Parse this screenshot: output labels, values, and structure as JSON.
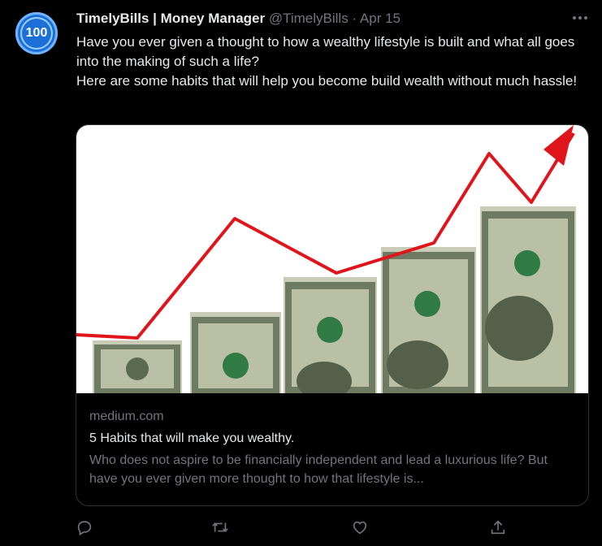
{
  "tweet": {
    "avatar_text": "100",
    "display_name": "TimelyBills | Money Manager",
    "handle": "@TimelyBills",
    "separator": "·",
    "date": "Apr 15",
    "text_line1": "Have you ever given a thought to how a wealthy lifestyle is built and what all goes into the making of such a life?",
    "text_line2": "Here are some habits that will help you become build wealth without much hassle!"
  },
  "card": {
    "image_icon": "money-growth-chart-image",
    "domain": "medium.com",
    "title": "5 Habits that will make you wealthy.",
    "description": "Who does not aspire to be financially independent and lead a luxurious life? But have you ever given more thought to how that lifestyle is..."
  },
  "actions": {
    "reply_icon": "reply-icon",
    "retweet_icon": "retweet-icon",
    "like_icon": "heart-icon",
    "share_icon": "share-icon"
  },
  "colors": {
    "background": "#000000",
    "text": "#e7e9ea",
    "muted": "#71767b",
    "border": "#2f3336",
    "avatar": "#1d6fd8",
    "arrow": "#e0141b"
  }
}
